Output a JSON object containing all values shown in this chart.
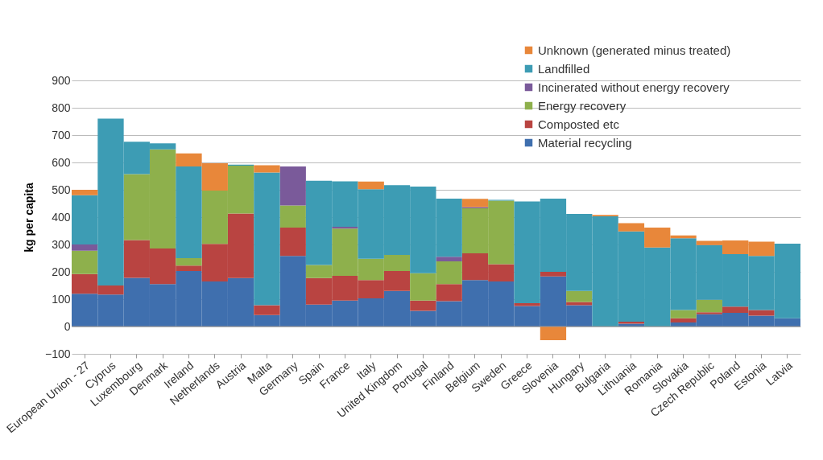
{
  "chart_data": {
    "type": "bar",
    "stacked": true,
    "ylabel": "kg per capita",
    "categories": [
      "European Union - 27",
      "Cyprus",
      "Luxembourg",
      "Denmark",
      "Ireland",
      "Netherlands",
      "Austria",
      "Malta",
      "Germany",
      "Spain",
      "France",
      "Italy",
      "United Kingdom",
      "Portugal",
      "Finland",
      "Belgium",
      "Sweden",
      "Greece",
      "Slovenia",
      "Hungary",
      "Bulgaria",
      "Lithuania",
      "Romania",
      "Slovakia",
      "Czech Republic",
      "Poland",
      "Estonia",
      "Latvia"
    ],
    "series": [
      {
        "name": "Material recycling",
        "color": "#3f6fae",
        "values": [
          120,
          117,
          178,
          155,
          203,
          165,
          177,
          42,
          258,
          80,
          95,
          103,
          130,
          57,
          93,
          170,
          165,
          75,
          183,
          78,
          0,
          10,
          0,
          15,
          45,
          50,
          40,
          30
        ]
      },
      {
        "name": "Composted etc",
        "color": "#b94441",
        "values": [
          72,
          33,
          138,
          130,
          20,
          137,
          236,
          36,
          104,
          97,
          90,
          67,
          73,
          38,
          62,
          98,
          63,
          10,
          17,
          12,
          0,
          8,
          0,
          15,
          7,
          23,
          20,
          0
        ]
      },
      {
        "name": "Energy recovery",
        "color": "#8eb04c",
        "values": [
          85,
          0,
          241,
          363,
          27,
          195,
          175,
          0,
          81,
          48,
          173,
          78,
          59,
          100,
          83,
          164,
          232,
          0,
          0,
          40,
          0,
          0,
          0,
          30,
          46,
          0,
          0,
          0
        ]
      },
      {
        "name": "Incinerated without energy recovery",
        "color": "#7a5a9a",
        "values": [
          23,
          0,
          0,
          0,
          0,
          0,
          0,
          0,
          142,
          0,
          7,
          0,
          0,
          0,
          17,
          5,
          0,
          0,
          0,
          0,
          0,
          0,
          0,
          0,
          0,
          0,
          0,
          0
        ]
      },
      {
        "name": "Landfilled",
        "color": "#3d9cb4",
        "values": [
          180,
          610,
          119,
          22,
          335,
          0,
          4,
          485,
          0,
          308,
          166,
          254,
          255,
          317,
          213,
          0,
          3,
          372,
          268,
          282,
          403,
          330,
          289,
          263,
          200,
          192,
          198,
          273
        ]
      },
      {
        "name": "Unknown (generated minus treated)",
        "color": "#e8873a",
        "values": [
          20,
          0,
          0,
          0,
          48,
          100,
          0,
          27,
          0,
          0,
          0,
          28,
          0,
          0,
          0,
          30,
          0,
          0,
          -50,
          0,
          5,
          30,
          73,
          10,
          15,
          50,
          52,
          0
        ]
      }
    ],
    "ylim": [
      -100,
      900
    ],
    "yticks": [
      -100,
      0,
      100,
      200,
      300,
      400,
      500,
      600,
      700,
      800,
      900
    ],
    "grid": "y",
    "legend": "top right"
  }
}
